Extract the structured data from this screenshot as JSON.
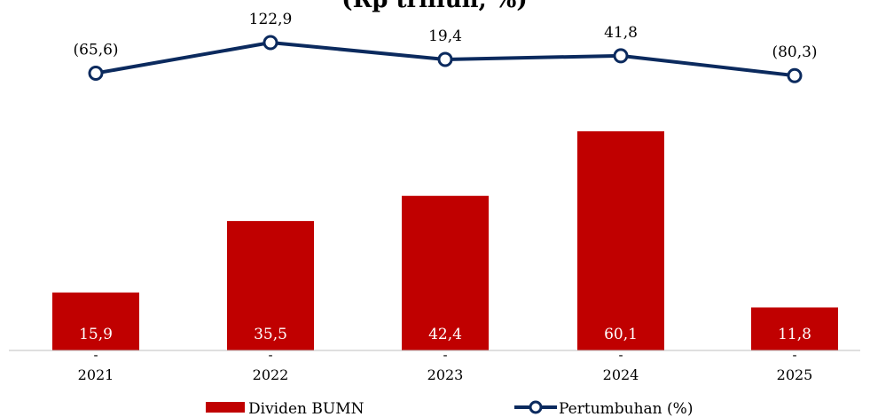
{
  "title": "(Rp triliun, %)",
  "chart_data": {
    "type": "bar",
    "categories": [
      "2021",
      "2022",
      "2023",
      "2024",
      "2025"
    ],
    "series": [
      {
        "name": "Dividen BUMN",
        "type": "bar",
        "color": "#c00000",
        "values": [
          15.9,
          35.5,
          42.4,
          60.1,
          11.8
        ],
        "labels": [
          "15,9",
          "35,5",
          "42,4",
          "60,1",
          "11,8"
        ]
      },
      {
        "name": "Pertumbuhan (%)",
        "type": "line",
        "color": "#0b2a5e",
        "values": [
          -65.6,
          122.9,
          19.4,
          41.8,
          -80.3
        ],
        "labels": [
          "(65,6)",
          "122,9",
          "19,4",
          "41,8",
          "(80,3)"
        ]
      }
    ],
    "line_marker_labels": [
      "-",
      "-",
      "-",
      "-",
      "-"
    ],
    "legend": {
      "position": "bottom"
    },
    "grid": false
  }
}
